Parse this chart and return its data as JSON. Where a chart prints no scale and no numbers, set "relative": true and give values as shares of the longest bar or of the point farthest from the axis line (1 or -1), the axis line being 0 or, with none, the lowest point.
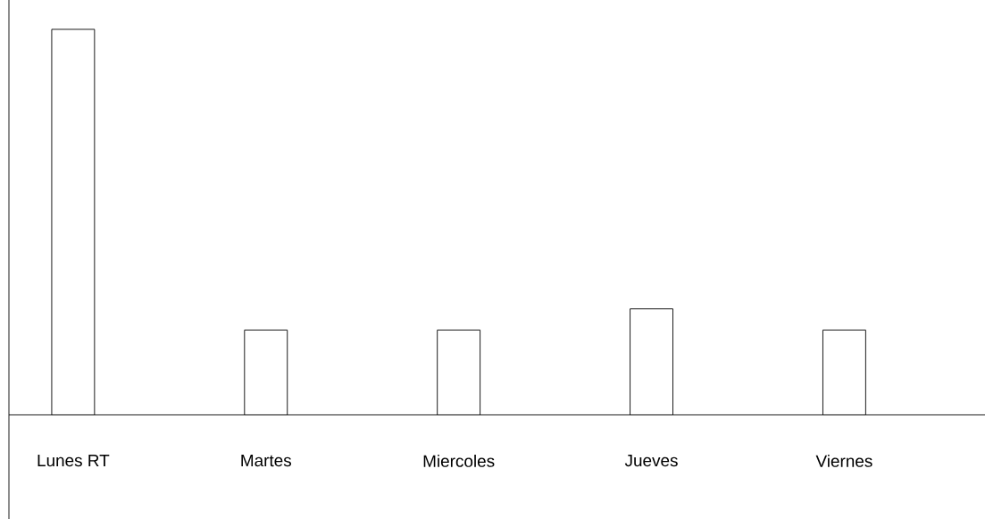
{
  "chart_data": {
    "type": "bar",
    "relative": true,
    "color": "#ffffff",
    "categories": [
      "Lunes RT",
      "Martes",
      "Miercoles",
      "Jueves",
      "Viernes"
    ],
    "values": [
      1,
      0.22,
      0.22,
      0.275,
      0.22
    ]
  }
}
